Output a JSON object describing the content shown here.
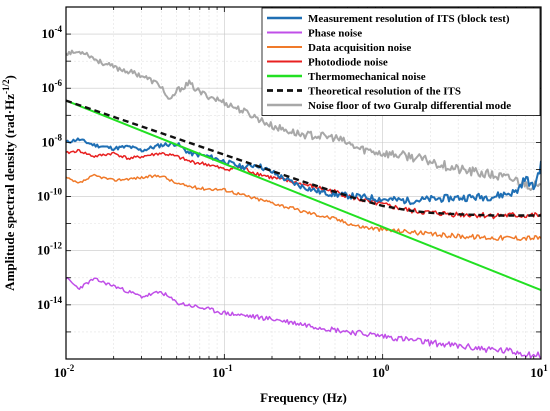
{
  "chart_data": {
    "type": "line",
    "xlabel": "Frequency (Hz)",
    "ylabel_main": "Amplitude spectral density (rad·Hz",
    "ylabel_exp": "-1/2",
    "ylabel_close": ")",
    "x_scale": "log",
    "y_scale": "log",
    "xlim": [
      0.01,
      10
    ],
    "ylim": [
      1e-16,
      0.001
    ],
    "grid": true,
    "legend_position": "top-right",
    "x_ticks": [
      {
        "value": 0.01,
        "base": "10",
        "exp": "-2"
      },
      {
        "value": 0.1,
        "base": "10",
        "exp": "-1"
      },
      {
        "value": 1,
        "base": "10",
        "exp": "0"
      },
      {
        "value": 10,
        "base": "10",
        "exp": "1"
      }
    ],
    "y_ticks": [
      {
        "value": 1e-14,
        "base": "10",
        "exp": "-14"
      },
      {
        "value": 1e-12,
        "base": "10",
        "exp": "-12"
      },
      {
        "value": 1e-10,
        "base": "10",
        "exp": "-10"
      },
      {
        "value": 1e-08,
        "base": "10",
        "exp": "-8"
      },
      {
        "value": 1e-06,
        "base": "10",
        "exp": "-6"
      },
      {
        "value": 0.0001,
        "base": "10",
        "exp": "-4"
      }
    ],
    "series": [
      {
        "name": "Measurement resolution of ITS (block test)",
        "color": "#1f6fb4",
        "width": 2,
        "dash": "",
        "jitter": 0.15,
        "seed": 11,
        "points": [
          [
            0.01,
            1e-08
          ],
          [
            0.012,
            1.3e-08
          ],
          [
            0.015,
            8e-09
          ],
          [
            0.02,
            6e-09
          ],
          [
            0.025,
            7e-09
          ],
          [
            0.03,
            5e-09
          ],
          [
            0.04,
            8e-09
          ],
          [
            0.05,
            9e-09
          ],
          [
            0.06,
            4e-09
          ],
          [
            0.08,
            3e-09
          ],
          [
            0.1,
            2e-09
          ],
          [
            0.13,
            1.2e-09
          ],
          [
            0.16,
            1.5e-09
          ],
          [
            0.2,
            8e-10
          ],
          [
            0.25,
            4e-10
          ],
          [
            0.3,
            2.5e-10
          ],
          [
            0.4,
            1.5e-10
          ],
          [
            0.5,
            1.2e-10
          ],
          [
            0.7,
            1e-10
          ],
          [
            1,
            8e-11
          ],
          [
            1.5,
            7e-11
          ],
          [
            2,
            8e-11
          ],
          [
            3,
            9e-11
          ],
          [
            5,
            1e-10
          ],
          [
            7,
            1.5e-10
          ],
          [
            8,
            5e-10
          ],
          [
            9,
            2e-10
          ],
          [
            10,
            1.5e-09
          ]
        ]
      },
      {
        "name": "Phase noise",
        "color": "#c04fe8",
        "width": 1.5,
        "dash": "",
        "jitter": 0.14,
        "seed": 23,
        "points": [
          [
            0.01,
            1e-13
          ],
          [
            0.012,
            4e-14
          ],
          [
            0.015,
            9e-14
          ],
          [
            0.02,
            5e-14
          ],
          [
            0.03,
            2e-14
          ],
          [
            0.04,
            3e-14
          ],
          [
            0.05,
            1.2e-14
          ],
          [
            0.07,
            8e-15
          ],
          [
            0.1,
            5e-15
          ],
          [
            0.2,
            3e-15
          ],
          [
            0.3,
            2e-15
          ],
          [
            0.5,
            1.2e-15
          ],
          [
            1,
            7e-16
          ],
          [
            2,
            4e-16
          ],
          [
            3,
            3e-16
          ],
          [
            5,
            2.2e-16
          ],
          [
            7,
            1.8e-16
          ],
          [
            10,
            1.3e-16
          ]
        ]
      },
      {
        "name": "Data acquisition noise",
        "color": "#f07a2a",
        "width": 1.5,
        "dash": "",
        "jitter": 0.1,
        "seed": 37,
        "points": [
          [
            0.01,
            5e-10
          ],
          [
            0.012,
            3e-10
          ],
          [
            0.015,
            6e-10
          ],
          [
            0.02,
            4e-10
          ],
          [
            0.03,
            5e-10
          ],
          [
            0.04,
            6e-10
          ],
          [
            0.05,
            3e-10
          ],
          [
            0.07,
            2e-10
          ],
          [
            0.1,
            1.8e-10
          ],
          [
            0.15,
            9e-11
          ],
          [
            0.2,
            6e-11
          ],
          [
            0.3,
            3e-11
          ],
          [
            0.5,
            1.5e-11
          ],
          [
            0.7,
            8e-12
          ],
          [
            1,
            6e-12
          ],
          [
            1.5,
            5e-12
          ],
          [
            2,
            4e-12
          ],
          [
            3,
            3.5e-12
          ],
          [
            5,
            3e-12
          ],
          [
            10,
            3e-12
          ]
        ]
      },
      {
        "name": "Photodiode noise",
        "color": "#e82020",
        "width": 1.5,
        "dash": "",
        "jitter": 0.12,
        "seed": 41,
        "points": [
          [
            0.01,
            4e-09
          ],
          [
            0.012,
            5e-09
          ],
          [
            0.015,
            3e-09
          ],
          [
            0.02,
            4e-09
          ],
          [
            0.025,
            2.5e-09
          ],
          [
            0.03,
            3e-09
          ],
          [
            0.04,
            4e-09
          ],
          [
            0.05,
            3e-09
          ],
          [
            0.06,
            2e-09
          ],
          [
            0.08,
            1.5e-09
          ],
          [
            0.1,
            1e-09
          ],
          [
            0.13,
            1.2e-09
          ],
          [
            0.15,
            8e-10
          ],
          [
            0.2,
            5e-10
          ],
          [
            0.3,
            3e-10
          ],
          [
            0.5,
            1.5e-10
          ],
          [
            0.7,
            8e-11
          ],
          [
            1,
            5e-11
          ],
          [
            1.5,
            3e-11
          ],
          [
            2,
            2.5e-11
          ],
          [
            3,
            2.2e-11
          ],
          [
            5,
            2e-11
          ],
          [
            10,
            2e-11
          ]
        ]
      },
      {
        "name": "Thermomechanical noise",
        "color": "#22e022",
        "width": 2,
        "dash": "",
        "jitter": 0,
        "seed": 1,
        "points": [
          [
            0.01,
            3.5e-07
          ],
          [
            10,
            3.5e-14
          ]
        ]
      },
      {
        "name": "Theoretical resolution of the ITS",
        "color": "#111111",
        "width": 2.4,
        "dash": "6,4",
        "jitter": 0,
        "seed": 1,
        "points": [
          [
            0.01,
            3.5e-07
          ],
          [
            0.03,
            3.9e-08
          ],
          [
            0.05,
            1.4e-08
          ],
          [
            0.1,
            3.5e-09
          ],
          [
            0.2,
            8.8e-10
          ],
          [
            0.3,
            3.9e-10
          ],
          [
            0.5,
            1.5e-10
          ],
          [
            0.7,
            8e-11
          ],
          [
            1,
            4.5e-11
          ],
          [
            1.5,
            3e-11
          ],
          [
            2,
            2.5e-11
          ],
          [
            3,
            2.2e-11
          ],
          [
            5,
            2e-11
          ],
          [
            10,
            2e-11
          ]
        ]
      },
      {
        "name": "Noise floor of two Guralp differential mode",
        "color": "#a8a8a8",
        "width": 2,
        "dash": "",
        "jitter": 0.2,
        "seed": 53,
        "points": [
          [
            0.01,
            2e-05
          ],
          [
            0.013,
            2.2e-05
          ],
          [
            0.016,
            1e-05
          ],
          [
            0.02,
            6e-06
          ],
          [
            0.03,
            3e-06
          ],
          [
            0.04,
            1.2e-06
          ],
          [
            0.045,
            3e-07
          ],
          [
            0.05,
            8e-07
          ],
          [
            0.06,
            1.5e-06
          ],
          [
            0.07,
            7e-07
          ],
          [
            0.1,
            3e-07
          ],
          [
            0.15,
            1e-07
          ],
          [
            0.2,
            4e-08
          ],
          [
            0.3,
            2e-08
          ],
          [
            0.5,
            1.5e-08
          ],
          [
            0.7,
            6e-09
          ],
          [
            1,
            4e-09
          ],
          [
            1.5,
            3e-09
          ],
          [
            2,
            2e-09
          ],
          [
            3,
            1e-09
          ],
          [
            5,
            6e-10
          ],
          [
            7,
            4e-10
          ],
          [
            10,
            2e-10
          ]
        ]
      }
    ]
  }
}
